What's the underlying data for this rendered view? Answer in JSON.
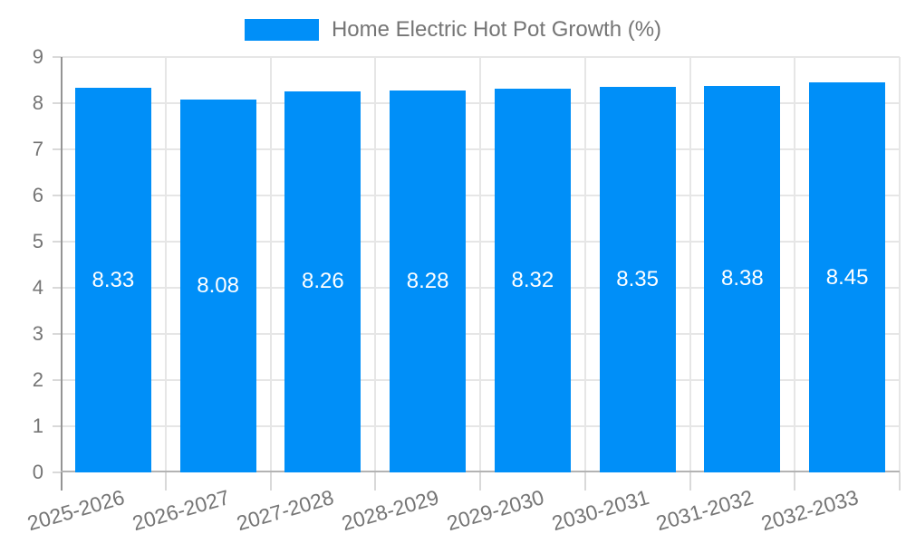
{
  "chart_data": {
    "type": "bar",
    "title": "Home Electric Hot Pot Growth (%)",
    "categories": [
      "2025-2026",
      "2026-2027",
      "2027-2028",
      "2028-2029",
      "2029-2030",
      "2030-2031",
      "2031-2032",
      "2032-2033"
    ],
    "values": [
      8.33,
      8.08,
      8.26,
      8.28,
      8.32,
      8.35,
      8.38,
      8.45
    ],
    "value_labels": [
      "8.33",
      "8.08",
      "8.26",
      "8.28",
      "8.32",
      "8.35",
      "8.38",
      "8.45"
    ],
    "xlabel": "",
    "ylabel": "",
    "ylim": [
      0,
      9
    ],
    "yticks": [
      0,
      1,
      2,
      3,
      4,
      5,
      6,
      7,
      8,
      9
    ],
    "grid": true,
    "legend_position": "top-center",
    "colors": {
      "bar": "#008ff8",
      "bar_label": "#ffffff",
      "axis_text": "#757575",
      "gridline": "#e6e6e6",
      "y_axis_line": "#949494",
      "x_axis_line": "#b3b3b3",
      "tick": "#d9d9d9",
      "background": "#ffffff"
    }
  }
}
